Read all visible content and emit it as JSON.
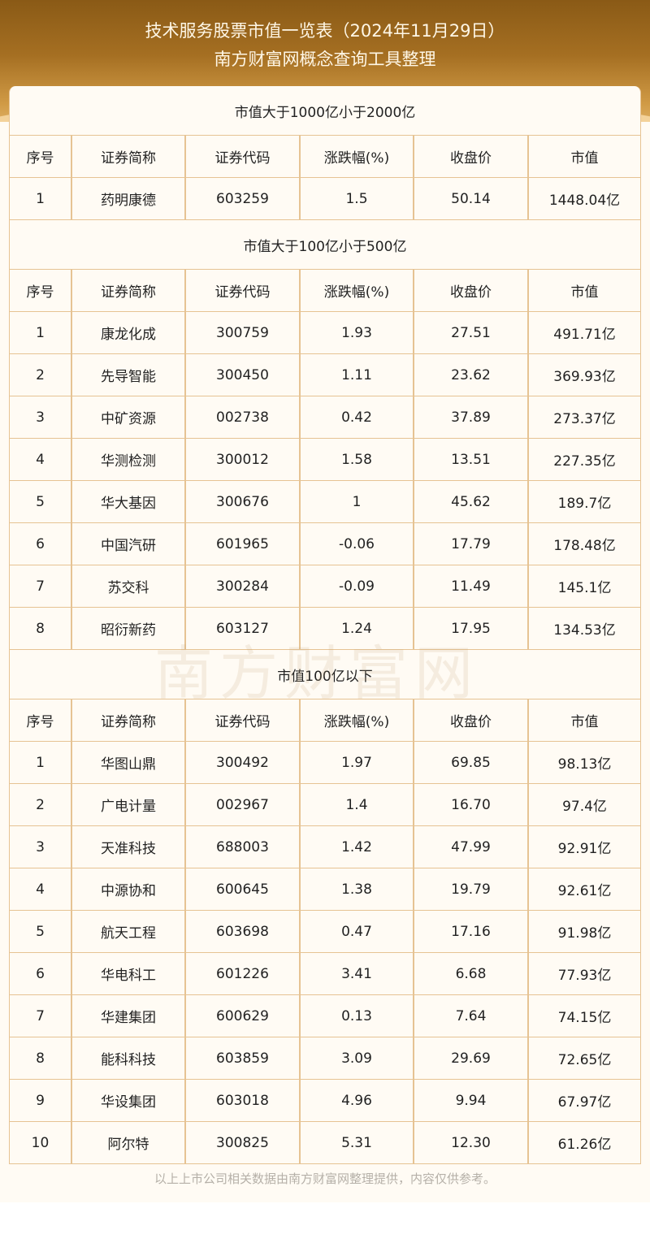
{
  "header": {
    "title": "技术服务股票市值一览表（2024年11月29日）",
    "subtitle": "南方财富网概念查询工具整理"
  },
  "columns": [
    "序号",
    "证券简称",
    "证券代码",
    "涨跌幅(%)",
    "收盘价",
    "市值"
  ],
  "sections": [
    {
      "title": "市值大于1000亿小于2000亿",
      "rows": [
        [
          "1",
          "药明康德",
          "603259",
          "1.5",
          "50.14",
          "1448.04亿"
        ]
      ]
    },
    {
      "title": "市值大于100亿小于500亿",
      "rows": [
        [
          "1",
          "康龙化成",
          "300759",
          "1.93",
          "27.51",
          "491.71亿"
        ],
        [
          "2",
          "先导智能",
          "300450",
          "1.11",
          "23.62",
          "369.93亿"
        ],
        [
          "3",
          "中矿资源",
          "002738",
          "0.42",
          "37.89",
          "273.37亿"
        ],
        [
          "4",
          "华测检测",
          "300012",
          "1.58",
          "13.51",
          "227.35亿"
        ],
        [
          "5",
          "华大基因",
          "300676",
          "1",
          "45.62",
          "189.7亿"
        ],
        [
          "6",
          "中国汽研",
          "601965",
          "-0.06",
          "17.79",
          "178.48亿"
        ],
        [
          "7",
          "苏交科",
          "300284",
          "-0.09",
          "11.49",
          "145.1亿"
        ],
        [
          "8",
          "昭衍新药",
          "603127",
          "1.24",
          "17.95",
          "134.53亿"
        ]
      ]
    },
    {
      "title": "市值100亿以下",
      "rows": [
        [
          "1",
          "华图山鼎",
          "300492",
          "1.97",
          "69.85",
          "98.13亿"
        ],
        [
          "2",
          "广电计量",
          "002967",
          "1.4",
          "16.70",
          "97.4亿"
        ],
        [
          "3",
          "天准科技",
          "688003",
          "1.42",
          "47.99",
          "92.91亿"
        ],
        [
          "4",
          "中源协和",
          "600645",
          "1.38",
          "19.79",
          "92.61亿"
        ],
        [
          "5",
          "航天工程",
          "603698",
          "0.47",
          "17.16",
          "91.98亿"
        ],
        [
          "6",
          "华电科工",
          "601226",
          "3.41",
          "6.68",
          "77.93亿"
        ],
        [
          "7",
          "华建集团",
          "600629",
          "0.13",
          "7.64",
          "74.15亿"
        ],
        [
          "8",
          "能科科技",
          "603859",
          "3.09",
          "29.69",
          "72.65亿"
        ],
        [
          "9",
          "华设集团",
          "603018",
          "4.96",
          "9.94",
          "67.97亿"
        ],
        [
          "10",
          "阿尔特",
          "300825",
          "5.31",
          "12.30",
          "61.26亿"
        ]
      ]
    }
  ],
  "watermark": "南方财富网 southmoney.com",
  "footer": "以上上市公司相关数据由南方财富网整理提供，内容仅供参考。"
}
